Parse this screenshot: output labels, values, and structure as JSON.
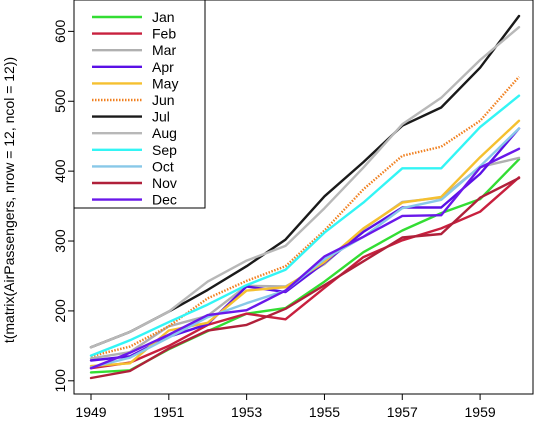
{
  "chart_data": {
    "type": "line",
    "title": "",
    "xlabel": "",
    "ylabel": "t(matrix(AirPassengers, nrow = 12, ncol = 12))",
    "x": [
      1949,
      1950,
      1951,
      1952,
      1953,
      1954,
      1955,
      1956,
      1957,
      1958,
      1959,
      1960
    ],
    "xlim": [
      1949,
      1960
    ],
    "ylim": [
      104,
      622
    ],
    "x_ticks": [
      "1949",
      "1951",
      "1953",
      "1955",
      "1957",
      "1959"
    ],
    "y_ticks": [
      "100",
      "200",
      "300",
      "400",
      "500",
      "600"
    ],
    "legend_position": "top-left",
    "grid": false,
    "series": [
      {
        "name": "Jan",
        "color": "#33dd33",
        "style": "solid",
        "values": [
          112,
          115,
          145,
          171,
          196,
          204,
          242,
          284,
          315,
          340,
          360,
          417
        ]
      },
      {
        "name": "Feb",
        "color": "#c8203e",
        "style": "solid",
        "values": [
          118,
          126,
          150,
          180,
          196,
          188,
          233,
          277,
          301,
          318,
          342,
          391
        ]
      },
      {
        "name": "Mar",
        "color": "#b0b0b0",
        "style": "solid",
        "values": [
          132,
          141,
          178,
          193,
          236,
          235,
          267,
          317,
          356,
          362,
          406,
          419
        ]
      },
      {
        "name": "Apr",
        "color": "#5a10e6",
        "style": "solid",
        "values": [
          129,
          135,
          163,
          181,
          235,
          227,
          269,
          313,
          348,
          348,
          396,
          461
        ]
      },
      {
        "name": "May",
        "color": "#f5c030",
        "style": "solid",
        "values": [
          121,
          125,
          172,
          183,
          229,
          234,
          270,
          318,
          355,
          363,
          420,
          472
        ]
      },
      {
        "name": "Jun",
        "color": "#f08020",
        "style": "dotted",
        "values": [
          135,
          149,
          178,
          218,
          243,
          264,
          315,
          374,
          422,
          435,
          472,
          535
        ]
      },
      {
        "name": "Jul",
        "color": "#1a1a1a",
        "style": "solid",
        "values": [
          148,
          170,
          199,
          230,
          264,
          302,
          364,
          413,
          465,
          491,
          548,
          622
        ]
      },
      {
        "name": "Aug",
        "color": "#b8b8b8",
        "style": "solid",
        "values": [
          148,
          170,
          199,
          242,
          272,
          293,
          347,
          405,
          467,
          505,
          559,
          606
        ]
      },
      {
        "name": "Sep",
        "color": "#33f5f5",
        "style": "solid",
        "values": [
          136,
          158,
          184,
          209,
          237,
          259,
          312,
          355,
          404,
          404,
          463,
          508
        ]
      },
      {
        "name": "Oct",
        "color": "#88c8e8",
        "style": "solid",
        "values": [
          119,
          133,
          162,
          191,
          211,
          229,
          274,
          306,
          347,
          359,
          407,
          461
        ]
      },
      {
        "name": "Nov",
        "color": "#b0203a",
        "style": "solid",
        "values": [
          104,
          114,
          146,
          172,
          180,
          203,
          237,
          271,
          305,
          310,
          362,
          390
        ]
      },
      {
        "name": "Dec",
        "color": "#6a18ea",
        "style": "solid",
        "values": [
          118,
          140,
          166,
          194,
          201,
          229,
          278,
          306,
          336,
          337,
          405,
          432
        ]
      }
    ]
  }
}
